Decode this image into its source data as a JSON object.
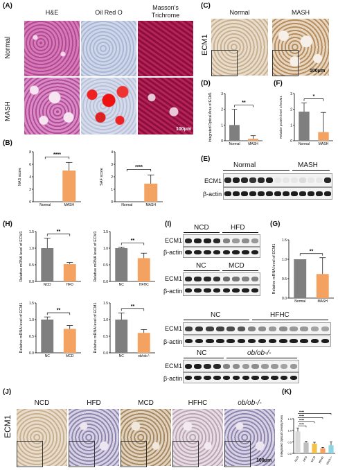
{
  "panels": {
    "A": {
      "label": "(A)",
      "columns": [
        "H&E",
        "Oil Red O",
        "Masson's",
        "Trichrome"
      ],
      "rows": [
        "Normal",
        "MASH"
      ],
      "scale": "100μm"
    },
    "B": {
      "label": "(B)"
    },
    "C": {
      "label": "(C)",
      "row_label": "ECM1",
      "columns": [
        "Normal",
        "MASH"
      ],
      "scale": "100μm"
    },
    "D": {
      "label": "(D)"
    },
    "E": {
      "label": "(E)",
      "groups": [
        "Normal",
        "MASH"
      ],
      "rows": [
        "ECM1",
        "β-actin"
      ]
    },
    "F": {
      "label": "(F)"
    },
    "G": {
      "label": "(G)"
    },
    "H": {
      "label": "(H)"
    },
    "I": {
      "label": "(I)",
      "blots": [
        {
          "groups": [
            "NCD",
            "HFD"
          ],
          "rows": [
            "ECM1",
            "β-actin"
          ]
        },
        {
          "groups": [
            "NC",
            "MCD"
          ],
          "rows": [
            "ECM1",
            "β-actin"
          ]
        },
        {
          "groups": [
            "NC",
            "HFHC"
          ],
          "rows": [
            "ECM1",
            "β-actin"
          ]
        },
        {
          "groups": [
            "NC",
            "ob/ob-/-"
          ],
          "rows": [
            "ECM1",
            "β-actin"
          ]
        }
      ]
    },
    "J": {
      "label": "(J)",
      "row_label": "ECM1",
      "columns": [
        "NCD",
        "HFD",
        "MCD",
        "HFHC",
        "ob/ob-/-"
      ],
      "scale": "100μm"
    },
    "K": {
      "label": "(K)"
    }
  },
  "colors": {
    "gray_bar": "#7f7f7f",
    "orange_bar": "#f4a262",
    "red_bar": "#e8433a"
  },
  "chart_data": [
    {
      "id": "B1",
      "type": "bar",
      "categories": [
        "Normal",
        "MASH"
      ],
      "values": [
        0,
        5.0
      ],
      "errors": [
        0,
        1.3
      ],
      "ylabel": "NAS score",
      "ylim": [
        0,
        8
      ],
      "yticks": [
        0,
        2,
        4,
        6,
        8
      ],
      "significance": "****"
    },
    {
      "id": "B2",
      "type": "bar",
      "categories": [
        "Normal",
        "MASH"
      ],
      "values": [
        0,
        1.45
      ],
      "errors": [
        0,
        0.7
      ],
      "ylabel": "SAF score",
      "ylim": [
        0,
        4
      ],
      "yticks": [
        0,
        1,
        2,
        3,
        4
      ],
      "significance": "****"
    },
    {
      "id": "D",
      "type": "bar",
      "categories": [
        "Normal",
        "MASH"
      ],
      "values": [
        1.0,
        0.12
      ],
      "errors": [
        1.0,
        0.2
      ],
      "ylabel": "Integrated Optical Area of ECM1",
      "ylim": [
        0,
        3
      ],
      "yticks": [
        0,
        1,
        2,
        3
      ],
      "significance": "**"
    },
    {
      "id": "F",
      "type": "bar",
      "categories": [
        "Normal",
        "MASH"
      ],
      "values": [
        1.85,
        0.55
      ],
      "errors": [
        0.55,
        1.25
      ],
      "ylabel": "Relative protein level of ECM1",
      "ylim": [
        0,
        3
      ],
      "yticks": [
        0,
        1,
        2,
        3
      ],
      "significance": "*"
    },
    {
      "id": "G",
      "type": "bar",
      "categories": [
        "Normal",
        "MASH"
      ],
      "values": [
        1.0,
        0.62
      ],
      "errors": [
        0.0,
        0.42
      ],
      "ylabel": "Relative mRNA level of ECM1",
      "ylim": [
        0,
        1.5
      ],
      "yticks": [
        0.0,
        0.5,
        1.0,
        1.5
      ],
      "significance": "**"
    },
    {
      "id": "H1",
      "type": "bar",
      "categories": [
        "NCD",
        "HFD"
      ],
      "values": [
        1.0,
        0.52
      ],
      "errors": [
        0.3,
        0.05
      ],
      "ylabel": "Relative mRNA level of ECM1",
      "ylim": [
        0,
        1.5
      ],
      "yticks": [
        0.0,
        0.5,
        1.0,
        1.5
      ],
      "significance": "**"
    },
    {
      "id": "H2",
      "type": "bar",
      "categories": [
        "NC",
        "HFHC"
      ],
      "values": [
        1.0,
        0.7
      ],
      "errors": [
        0.03,
        0.15
      ],
      "ylabel": "Relative mRNA level of ECM1",
      "ylim": [
        0,
        1.5
      ],
      "yticks": [
        0.0,
        0.5,
        1.0,
        1.5
      ],
      "significance": "**"
    },
    {
      "id": "H3",
      "type": "bar",
      "categories": [
        "NC",
        "MCD"
      ],
      "values": [
        1.0,
        0.72
      ],
      "errors": [
        0.08,
        0.1
      ],
      "ylabel": "Relative mRNA level of ECM1",
      "ylim": [
        0,
        1.5
      ],
      "yticks": [
        0.0,
        0.5,
        1.0,
        1.5
      ],
      "significance": "**"
    },
    {
      "id": "H4",
      "type": "bar",
      "categories": [
        "NC",
        "ob/ob-/-"
      ],
      "values": [
        1.0,
        0.6
      ],
      "errors": [
        0.2,
        0.1
      ],
      "ylabel": "Relative mRNA level of ECM1",
      "ylim": [
        0,
        1.5
      ],
      "yticks": [
        0.0,
        0.5,
        1.0,
        1.5
      ],
      "significance": "**"
    },
    {
      "id": "K",
      "type": "bar",
      "categories": [
        "NCD",
        "HFD",
        "MCD",
        "HFHC",
        "ob/ob-/-"
      ],
      "values": [
        0.95,
        0.47,
        0.42,
        0.22,
        0.35
      ],
      "errors": [
        0.15,
        0.05,
        0.06,
        0.04,
        0.15
      ],
      "ylabel": "Integrated Optical Density/Area",
      "ylim": [
        0,
        1.5
      ],
      "yticks": [
        0.0,
        0.5,
        1.0,
        1.5
      ],
      "significance": [
        "****",
        "****",
        "****",
        "****"
      ]
    }
  ]
}
